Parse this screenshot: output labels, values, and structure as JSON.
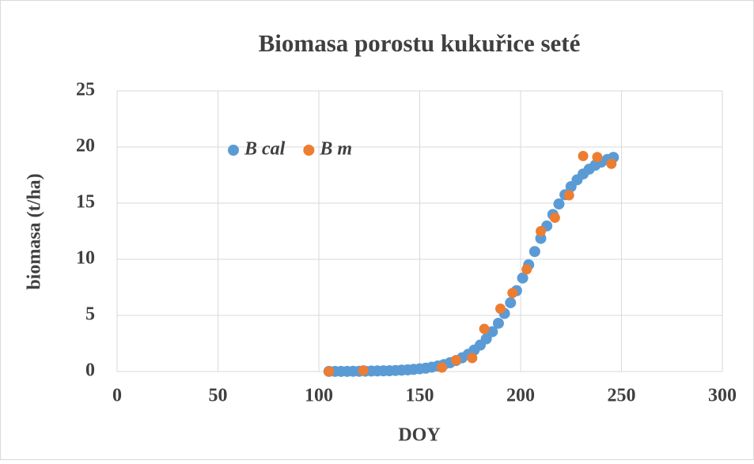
{
  "chart_data": {
    "type": "scatter",
    "title": "Biomasa porostu kukuřice seté",
    "x_label": "DOY",
    "y_label": "biomasa (t/ha)",
    "xlim": [
      0,
      300
    ],
    "xticks": [
      0,
      50,
      100,
      150,
      200,
      250,
      300
    ],
    "ylim": [
      0,
      25
    ],
    "yticks": [
      0,
      5,
      10,
      15,
      20,
      25
    ],
    "grid": true,
    "legend": "upper left",
    "series": [
      {
        "name": "B cal",
        "color": "#5b9bd5",
        "x": [
          105,
          108,
          111,
          114,
          117,
          120,
          123,
          126,
          129,
          132,
          135,
          138,
          141,
          144,
          147,
          150,
          153,
          156,
          159,
          162,
          165,
          168,
          171,
          174,
          177,
          180,
          183,
          186,
          189,
          192,
          195,
          198,
          201,
          204,
          207,
          210,
          213,
          216,
          219,
          222,
          225,
          228,
          231,
          234,
          237,
          240,
          243,
          246
        ],
        "values": [
          0.01,
          0.01,
          0.01,
          0.01,
          0.02,
          0.02,
          0.03,
          0.04,
          0.05,
          0.06,
          0.07,
          0.09,
          0.12,
          0.15,
          0.19,
          0.24,
          0.3,
          0.39,
          0.49,
          0.62,
          0.78,
          0.98,
          1.22,
          1.53,
          1.91,
          2.36,
          2.91,
          3.55,
          4.3,
          5.17,
          6.13,
          7.2,
          8.33,
          9.51,
          10.69,
          11.86,
          12.97,
          13.99,
          14.93,
          15.75,
          16.47,
          17.08,
          17.6,
          18.03,
          18.38,
          18.66,
          18.89,
          19.08
        ]
      },
      {
        "name": "B m",
        "color": "#ed7d31",
        "x": [
          105,
          122,
          161,
          168,
          176,
          182,
          190,
          196,
          203,
          210,
          217,
          224,
          231,
          238,
          245
        ],
        "values": [
          0.0,
          0.1,
          0.35,
          1.0,
          1.2,
          3.8,
          5.6,
          7.0,
          9.1,
          12.5,
          13.7,
          15.7,
          19.2,
          19.1,
          18.5
        ]
      }
    ]
  }
}
